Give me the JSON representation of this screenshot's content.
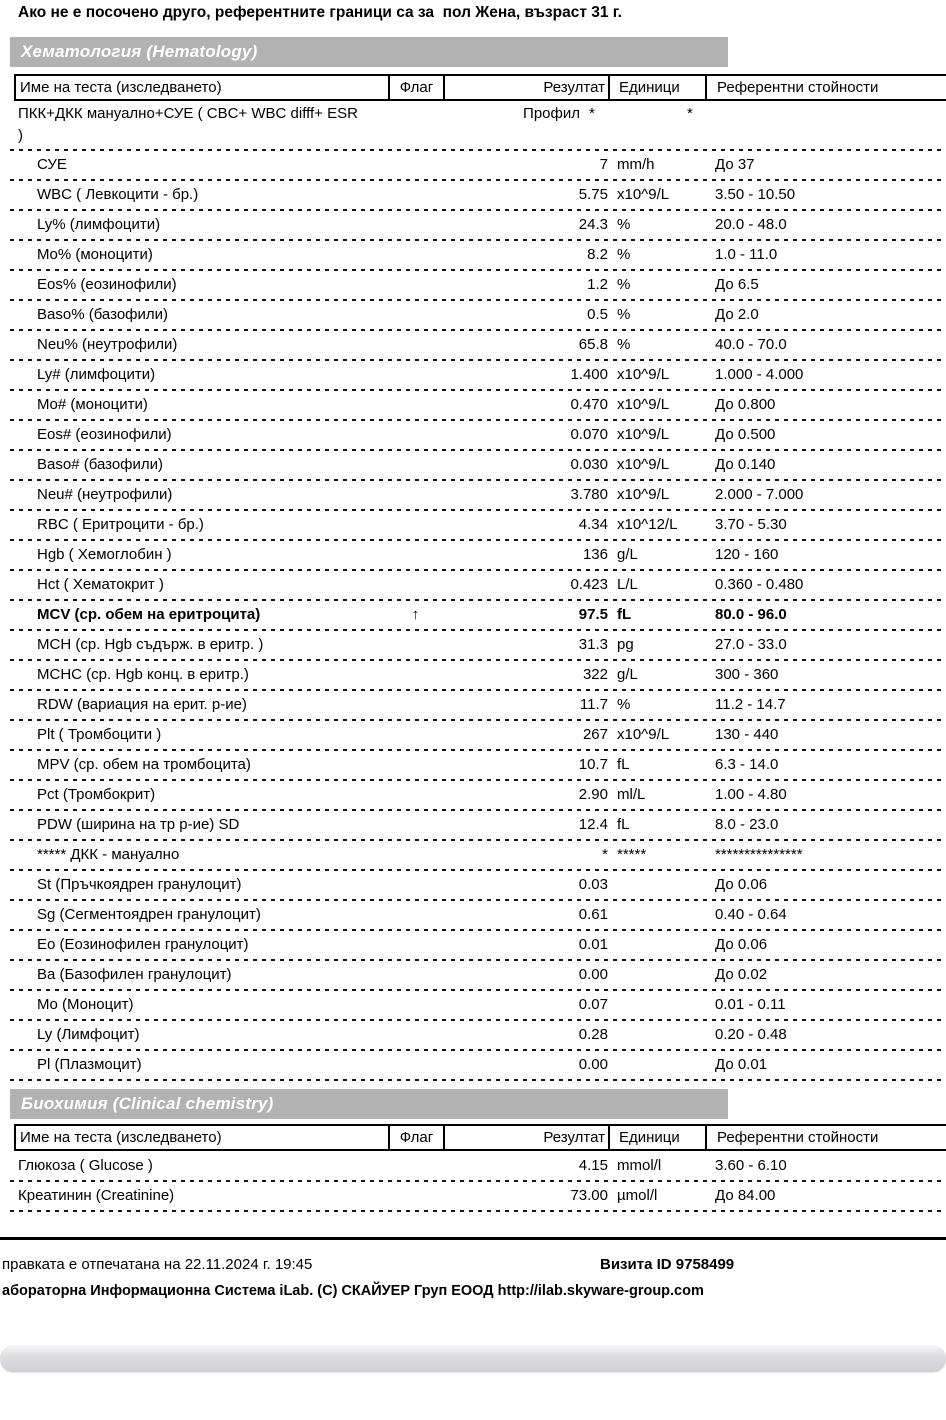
{
  "page": {
    "note": "Ако не е посочено друго, референтните граници са за  пол Жена, възраст 31 г.",
    "colors": {
      "section_bar": "#b2b2b2",
      "scrollbar_track": "#d7d7db",
      "text": "#000000"
    }
  },
  "columns": [
    "Име на теста (изследването)",
    "Флаг",
    "Резултат",
    "Единици",
    "Референтни стойности"
  ],
  "flag_icon": {
    "up_arrow": "↑"
  },
  "sections": [
    {
      "title": "Хематология (Hematology)",
      "rows": [
        {
          "name": "ПКК+ДКК мануално+СУЕ ( CBC+ WBC difff+ ESR )",
          "flag": "",
          "result": "Профил",
          "units": "*",
          "ref": "*",
          "profile": true
        },
        {
          "name": "СУЕ",
          "flag": "",
          "result": "7",
          "units": "mm/h",
          "ref": "До 37",
          "indent": true
        },
        {
          "name": "WBC ( Левкоцити - бр.)",
          "flag": "",
          "result": "5.75",
          "units": "x10^9/L",
          "ref": "3.50 - 10.50",
          "indent": true
        },
        {
          "name": "Ly% (лимфоцити)",
          "flag": "",
          "result": "24.3",
          "units": "%",
          "ref": "20.0 - 48.0",
          "indent": true
        },
        {
          "name": "Mo% (моноцити)",
          "flag": "",
          "result": "8.2",
          "units": "%",
          "ref": "1.0 - 11.0",
          "indent": true
        },
        {
          "name": "Eos% (еозинофили)",
          "flag": "",
          "result": "1.2",
          "units": "%",
          "ref": "До 6.5",
          "indent": true
        },
        {
          "name": "Baso% (базофили)",
          "flag": "",
          "result": "0.5",
          "units": "%",
          "ref": "До 2.0",
          "indent": true
        },
        {
          "name": "Neu% (неутрофили)",
          "flag": "",
          "result": "65.8",
          "units": "%",
          "ref": "40.0 - 70.0",
          "indent": true
        },
        {
          "name": "Ly# (лимфоцити)",
          "flag": "",
          "result": "1.400",
          "units": "x10^9/L",
          "ref": "1.000 - 4.000",
          "indent": true
        },
        {
          "name": "Mo# (моноцити)",
          "flag": "",
          "result": "0.470",
          "units": "x10^9/L",
          "ref": "До 0.800",
          "indent": true
        },
        {
          "name": "Eos# (еозинофили)",
          "flag": "",
          "result": "0.070",
          "units": "x10^9/L",
          "ref": "До 0.500",
          "indent": true
        },
        {
          "name": "Baso# (базофили)",
          "flag": "",
          "result": "0.030",
          "units": "x10^9/L",
          "ref": "До 0.140",
          "indent": true
        },
        {
          "name": "Neu# (неутрофили)",
          "flag": "",
          "result": "3.780",
          "units": "x10^9/L",
          "ref": "2.000 - 7.000",
          "indent": true
        },
        {
          "name": "RBC ( Еритроцити - бр.)",
          "flag": "",
          "result": "4.34",
          "units": "x10^12/L",
          "ref": "3.70 - 5.30",
          "indent": true
        },
        {
          "name": "Hgb ( Хемоглобин )",
          "flag": "",
          "result": "136",
          "units": "g/L",
          "ref": "120 - 160",
          "indent": true
        },
        {
          "name": "Hct ( Хематокрит )",
          "flag": "",
          "result": "0.423",
          "units": "L/L",
          "ref": "0.360 - 0.480",
          "indent": true
        },
        {
          "name": "MCV (ср. обем на еритроцита)",
          "flag": "↑",
          "result": "97.5",
          "units": "fL",
          "ref": "80.0 - 96.0",
          "indent": true,
          "bold": true
        },
        {
          "name": "MCH (ср. Hgb съдърж. в еритр. )",
          "flag": "",
          "result": "31.3",
          "units": "pg",
          "ref": "27.0 - 33.0",
          "indent": true
        },
        {
          "name": "MCHC (ср. Hgb конц. в еритр.)",
          "flag": "",
          "result": "322",
          "units": "g/L",
          "ref": "300 - 360",
          "indent": true
        },
        {
          "name": "RDW (вариация на ерит. р-ие)",
          "flag": "",
          "result": "11.7",
          "units": "%",
          "ref": "11.2 - 14.7",
          "indent": true
        },
        {
          "name": "Plt ( Тромбоцити )",
          "flag": "",
          "result": "267",
          "units": "x10^9/L",
          "ref": "130 - 440",
          "indent": true
        },
        {
          "name": "MPV (ср. обем на тромбоцита)",
          "flag": "",
          "result": "10.7",
          "units": "fL",
          "ref": "6.3 - 14.0",
          "indent": true
        },
        {
          "name": "Pct (Тромбокрит)",
          "flag": "",
          "result": "2.90",
          "units": "ml/L",
          "ref": "1.00 - 4.80",
          "indent": true
        },
        {
          "name": "PDW (ширина на тр р-ие) SD",
          "flag": "",
          "result": "12.4",
          "units": "fL",
          "ref": "8.0 - 23.0",
          "indent": true
        },
        {
          "name": "***** ДКК - мануално",
          "flag": "",
          "result": "*",
          "units": "*****",
          "ref": "***************",
          "indent": true
        },
        {
          "name": "St (Пръчкоядрен гранулоцит)",
          "flag": "",
          "result": "0.03",
          "units": "",
          "ref": "До 0.06",
          "indent": true
        },
        {
          "name": "Sg (Сегментоядрен гранулоцит)",
          "flag": "",
          "result": "0.61",
          "units": "",
          "ref": "0.40 - 0.64",
          "indent": true
        },
        {
          "name": "Eo (Еозинофилен гранулоцит)",
          "flag": "",
          "result": "0.01",
          "units": "",
          "ref": "До 0.06",
          "indent": true
        },
        {
          "name": "Ba (Базофилен гранулоцит)",
          "flag": "",
          "result": "0.00",
          "units": "",
          "ref": "До 0.02",
          "indent": true
        },
        {
          "name": "Mo (Моноцит)",
          "flag": "",
          "result": "0.07",
          "units": "",
          "ref": "0.01 - 0.11",
          "indent": true
        },
        {
          "name": "Ly (Лимфоцит)",
          "flag": "",
          "result": "0.28",
          "units": "",
          "ref": "0.20 - 0.48",
          "indent": true
        },
        {
          "name": "Pl (Плазмоцит)",
          "flag": "",
          "result": "0.00",
          "units": "",
          "ref": "До 0.01",
          "indent": true
        }
      ]
    },
    {
      "title": "Биохимия (Clinical chemistry)",
      "rows": [
        {
          "name": "Глюкоза ( Glucose )",
          "flag": "",
          "result": "4.15",
          "units": "mmol/l",
          "ref": "3.60 - 6.10"
        },
        {
          "name": "Креатинин (Creatinine)",
          "flag": "",
          "result": "73.00",
          "units": "µmol/l",
          "ref": "До 84.00"
        }
      ]
    }
  ],
  "footer": {
    "printed": "правката е отпечатана на 22.11.2024 г. 19:45",
    "visit_id": "Визита ID 9758499",
    "lis": "абораторна Информационна Система iLab. (C) СКАЙУЕР Груп ЕООД http://ilab.skyware-group.com"
  }
}
